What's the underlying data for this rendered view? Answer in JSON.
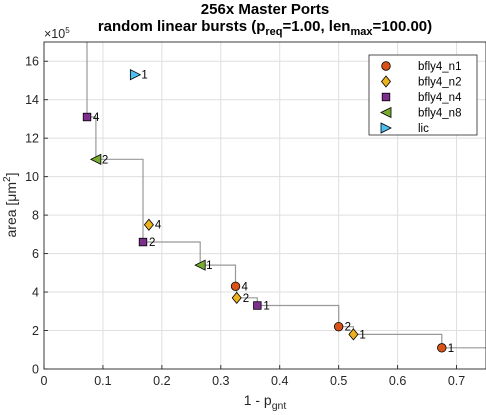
{
  "chart_data": {
    "type": "scatter",
    "title_line1": "256x Master Ports",
    "title_line2": {
      "prefix": "random linear bursts (p",
      "sub1": "req",
      "mid": "=1.00, len",
      "sub2": "max",
      "suffix": "=100.00)"
    },
    "xlabel": {
      "main": "1 - p",
      "sub": "gnt"
    },
    "ylabel": {
      "main": "area [",
      "unit": "μm",
      "sup": "2",
      "close": "]"
    },
    "y_multiplier": "×10",
    "y_multiplier_exp": "5",
    "xlim": [
      0,
      0.75
    ],
    "ylim": [
      0,
      17
    ],
    "xticks": [
      0,
      0.1,
      0.2,
      0.3,
      0.4,
      0.5,
      0.6,
      0.7
    ],
    "xtick_labels": [
      "0",
      "0.1",
      "0.2",
      "0.3",
      "0.4",
      "0.5",
      "0.6",
      "0.7"
    ],
    "yticks": [
      0,
      2,
      4,
      6,
      8,
      10,
      12,
      14,
      16
    ],
    "ytick_labels": [
      "0",
      "2",
      "4",
      "6",
      "8",
      "10",
      "12",
      "14",
      "16"
    ],
    "grid": true,
    "legend_position": "top-right",
    "series": [
      {
        "name": "bfly4_n1",
        "marker": "circle",
        "color": "#d95319",
        "points": [
          {
            "x": 0.325,
            "y": 4.3,
            "label": "4"
          },
          {
            "x": 0.5,
            "y": 2.2,
            "label": "2"
          },
          {
            "x": 0.675,
            "y": 1.1,
            "label": "1"
          }
        ]
      },
      {
        "name": "bfly4_n2",
        "marker": "diamond",
        "color": "#edb120",
        "points": [
          {
            "x": 0.178,
            "y": 7.5,
            "label": "4"
          },
          {
            "x": 0.327,
            "y": 3.7,
            "label": "2"
          },
          {
            "x": 0.525,
            "y": 1.8,
            "label": "1"
          }
        ]
      },
      {
        "name": "bfly4_n4",
        "marker": "square",
        "color": "#7e2f8e",
        "points": [
          {
            "x": 0.073,
            "y": 13.1,
            "label": "4"
          },
          {
            "x": 0.168,
            "y": 6.6,
            "label": "2"
          },
          {
            "x": 0.362,
            "y": 3.3,
            "label": "1"
          }
        ]
      },
      {
        "name": "bfly4_n8",
        "marker": "triangle-left",
        "color": "#77ac30",
        "points": [
          {
            "x": 0.088,
            "y": 10.9,
            "label": "2"
          },
          {
            "x": 0.265,
            "y": 5.4,
            "label": "1"
          }
        ]
      },
      {
        "name": "lic",
        "marker": "triangle-right",
        "color": "#4dbeee",
        "points": [
          {
            "x": 0.155,
            "y": 15.3,
            "label": "1"
          }
        ]
      }
    ],
    "pareto_front": [
      [
        0.073,
        17.5
      ],
      [
        0.073,
        13.1
      ],
      [
        0.088,
        13.1
      ],
      [
        0.088,
        10.9
      ],
      [
        0.168,
        10.9
      ],
      [
        0.168,
        6.6
      ],
      [
        0.265,
        6.6
      ],
      [
        0.265,
        5.4
      ],
      [
        0.325,
        5.4
      ],
      [
        0.325,
        4.3
      ],
      [
        0.327,
        4.3
      ],
      [
        0.327,
        3.7
      ],
      [
        0.362,
        3.7
      ],
      [
        0.362,
        3.3
      ],
      [
        0.5,
        3.3
      ],
      [
        0.5,
        2.2
      ],
      [
        0.525,
        2.2
      ],
      [
        0.525,
        1.8
      ],
      [
        0.675,
        1.8
      ],
      [
        0.675,
        1.1
      ],
      [
        0.75,
        1.1
      ]
    ],
    "colors": {
      "pareto_line": "#999999",
      "grid": "#dfdfdf",
      "axis": "#262626"
    }
  }
}
